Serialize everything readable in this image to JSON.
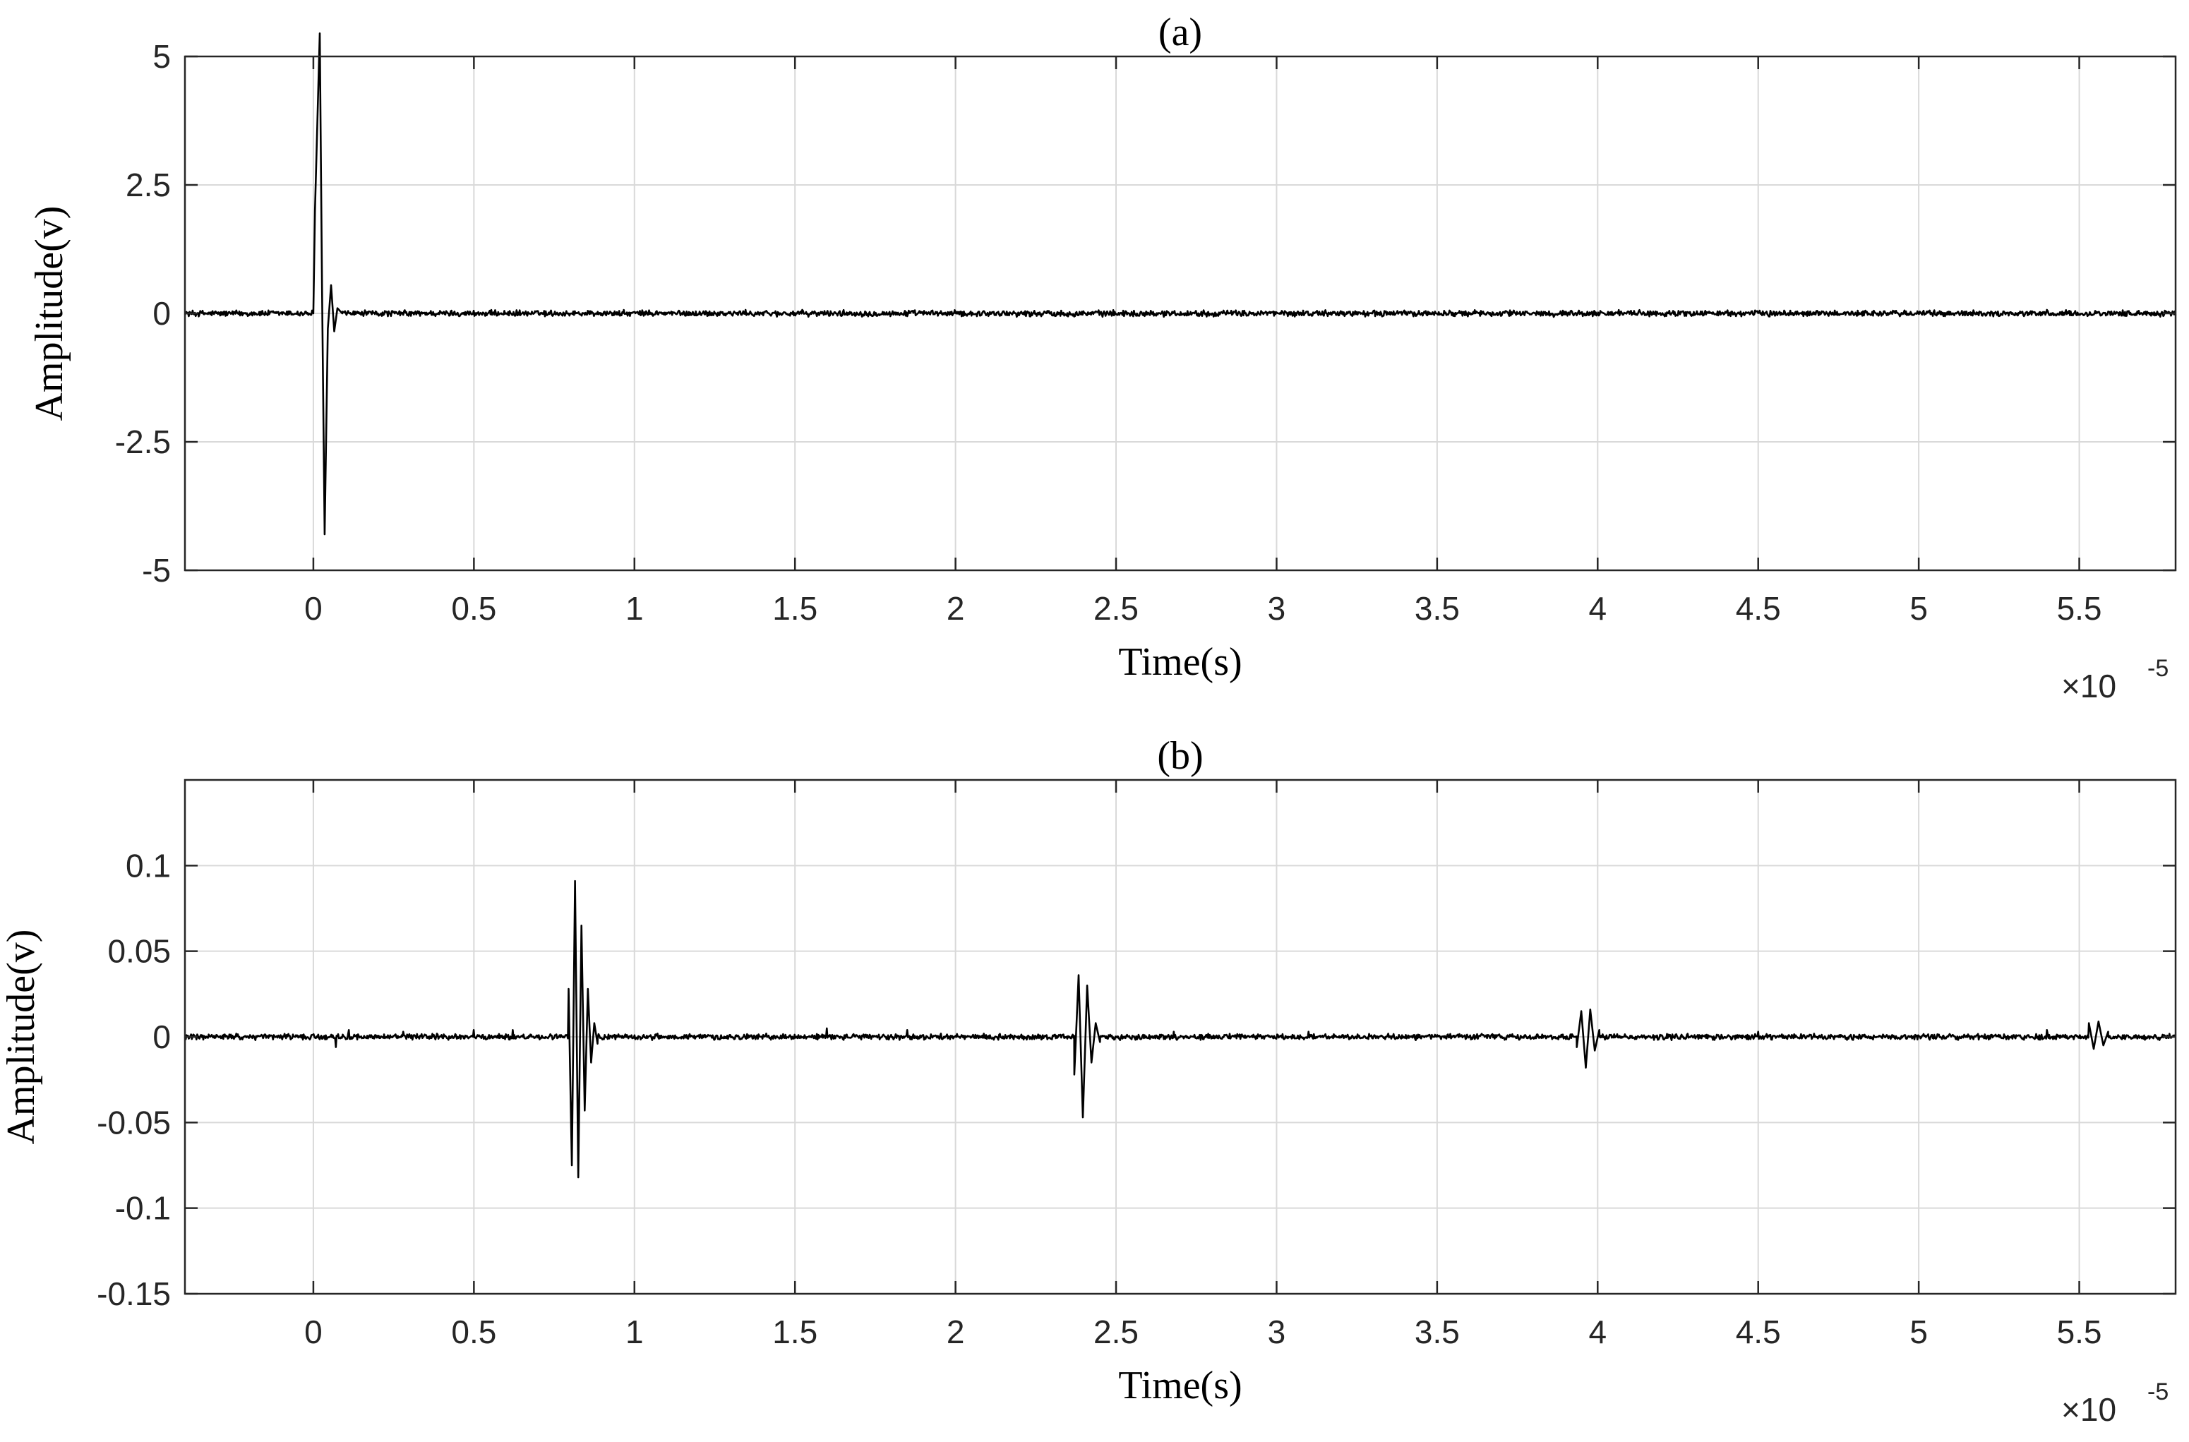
{
  "chart_data": [
    {
      "type": "line",
      "title": "(a)",
      "xlabel": "Time(s)",
      "ylabel": "Amplitude(v)",
      "x_exponent_base": "×10",
      "x_exponent_power": "-5",
      "xlim": [
        -0.4,
        5.8
      ],
      "ylim": [
        -5,
        5
      ],
      "xticks": [
        0,
        0.5,
        1,
        1.5,
        2,
        2.5,
        3,
        3.5,
        4,
        4.5,
        5,
        5.5
      ],
      "xtick_labels": [
        "0",
        "0.5",
        "1",
        "1.5",
        "2",
        "2.5",
        "3",
        "3.5",
        "4",
        "4.5",
        "5",
        "5.5"
      ],
      "yticks": [
        5,
        2.5,
        0,
        -2.5,
        -5
      ],
      "ytick_labels": [
        "5",
        "2.5",
        "0",
        "-2.5",
        "-5"
      ],
      "grid": true,
      "series": [
        {
          "color": "#000000",
          "baseline": 0,
          "noise_amplitude": 0.07,
          "features": [
            {
              "x": 0.0,
              "y": 0.0
            },
            {
              "x": 0.005,
              "y": 2.0
            },
            {
              "x": 0.02,
              "y": 5.45
            },
            {
              "x": 0.027,
              "y": 0.5
            },
            {
              "x": 0.035,
              "y": -4.3
            },
            {
              "x": 0.045,
              "y": -0.3
            },
            {
              "x": 0.055,
              "y": 0.55
            },
            {
              "x": 0.065,
              "y": -0.35
            },
            {
              "x": 0.075,
              "y": 0.1
            },
            {
              "x": 0.09,
              "y": 0.0
            }
          ]
        }
      ]
    },
    {
      "type": "line",
      "title": "(b)",
      "xlabel": "Time(s)",
      "ylabel": "Amplitude(v)",
      "x_exponent_base": "×10",
      "x_exponent_power": "-5",
      "xlim": [
        -0.4,
        5.8
      ],
      "ylim": [
        -0.15,
        0.15
      ],
      "xticks": [
        0,
        0.5,
        1,
        1.5,
        2,
        2.5,
        3,
        3.5,
        4,
        4.5,
        5,
        5.5
      ],
      "xtick_labels": [
        "0",
        "0.5",
        "1",
        "1.5",
        "2",
        "2.5",
        "3",
        "3.5",
        "4",
        "4.5",
        "5",
        "5.5"
      ],
      "yticks": [
        0.1,
        0.05,
        0,
        -0.05,
        -0.1,
        -0.15
      ],
      "ytick_labels": [
        "0.1",
        "0.05",
        "0",
        "-0.05",
        "-0.1",
        "-0.15"
      ],
      "grid": true,
      "series": [
        {
          "color": "#000000",
          "baseline": 0,
          "noise_amplitude": 0.002,
          "bursts": [
            {
              "center": 0.84,
              "width": 0.09,
              "peaks": [
                0.028,
                -0.075,
                0.091,
                -0.082,
                0.065,
                -0.043,
                0.028,
                -0.015,
                0.008,
                -0.004
              ]
            },
            {
              "center": 2.41,
              "width": 0.08,
              "peaks": [
                -0.022,
                0.036,
                -0.047,
                0.03,
                -0.015,
                0.008,
                -0.003
              ]
            },
            {
              "center": 3.97,
              "width": 0.07,
              "peaks": [
                -0.006,
                0.015,
                -0.018,
                0.016,
                -0.008,
                0.004
              ]
            },
            {
              "center": 5.56,
              "width": 0.06,
              "peaks": [
                0.008,
                -0.007,
                0.009,
                -0.005,
                0.003
              ]
            }
          ],
          "spikes": [
            {
              "x": 0.07,
              "y": -0.006
            },
            {
              "x": 0.11,
              "y": 0.004
            },
            {
              "x": 0.28,
              "y": 0.003
            },
            {
              "x": 0.5,
              "y": 0.004
            },
            {
              "x": 0.62,
              "y": 0.004
            },
            {
              "x": 1.6,
              "y": 0.005
            },
            {
              "x": 1.85,
              "y": 0.004
            },
            {
              "x": 2.68,
              "y": 0.003
            },
            {
              "x": 3.1,
              "y": 0.003
            },
            {
              "x": 4.5,
              "y": 0.003
            },
            {
              "x": 5.4,
              "y": 0.004
            }
          ]
        }
      ]
    }
  ]
}
